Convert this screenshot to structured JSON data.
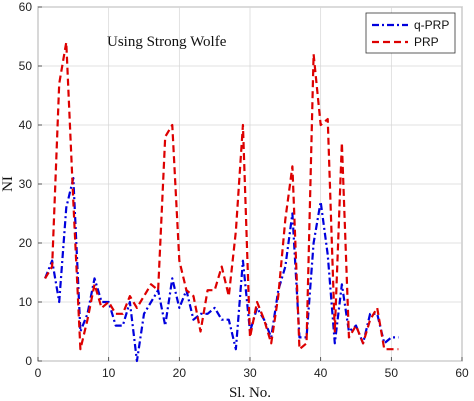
{
  "chart_data": {
    "type": "line",
    "xlabel": "Sl. No.",
    "ylabel": "NI",
    "xlim": [
      0,
      60
    ],
    "ylim": [
      0,
      60
    ],
    "xticks": [
      "0",
      "10",
      "20",
      "30",
      "40",
      "50",
      "60"
    ],
    "yticks": [
      "0",
      "10",
      "20",
      "30",
      "40",
      "50",
      "60"
    ],
    "grid": true,
    "legend_position": "top-right",
    "annotation": "Using Strong Wolfe",
    "x": [
      1,
      2,
      3,
      4,
      5,
      6,
      7,
      8,
      9,
      10,
      11,
      12,
      13,
      14,
      15,
      16,
      17,
      18,
      19,
      20,
      21,
      22,
      23,
      24,
      25,
      26,
      27,
      28,
      29,
      30,
      31,
      32,
      33,
      34,
      35,
      36,
      37,
      38,
      39,
      40,
      41,
      42,
      43,
      44,
      45,
      46,
      47,
      48,
      49,
      50,
      51
    ],
    "series": [
      {
        "name": "q-PRP",
        "color": "#0000dd",
        "style": "dashdot",
        "values": [
          14,
          17,
          10,
          26,
          31,
          5,
          8,
          14,
          10,
          10,
          6,
          6,
          10,
          0,
          8,
          10,
          12,
          6,
          14,
          9,
          12,
          7,
          8,
          8,
          9,
          7,
          7,
          2,
          17,
          5,
          9,
          7,
          4,
          12,
          16,
          25,
          4,
          4,
          20,
          27,
          18,
          3,
          13,
          5,
          6,
          3,
          8,
          8,
          3,
          4,
          4
        ]
      },
      {
        "name": "PRP",
        "color": "#dd0000",
        "style": "dashed",
        "values": [
          14,
          16,
          47,
          54,
          27,
          2,
          7,
          13,
          9,
          10,
          8,
          8,
          11,
          9,
          11,
          13,
          12,
          38,
          40,
          17,
          12,
          11,
          5,
          12,
          12,
          16,
          11,
          22,
          40,
          4,
          10,
          7,
          3,
          11,
          24,
          33,
          2,
          3,
          52,
          40,
          41,
          5,
          37,
          4,
          6,
          3,
          7,
          9,
          2,
          2,
          2
        ]
      }
    ]
  }
}
